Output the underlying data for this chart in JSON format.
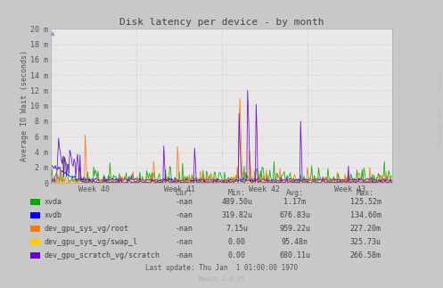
{
  "title": "Disk latency per device - by month",
  "ylabel": "Average IO Wait (seconds)",
  "background_color": "#c8c8c8",
  "plot_bg_color": "#e8e8e8",
  "grid_color_v": "#b0b0c8",
  "grid_color_h": "#ffaaaa",
  "title_color": "#555555",
  "watermark": "RRDTOOL / TOBI OETIKER",
  "munin_version": "Munin 2.0.75",
  "last_update": "Last update: Thu Jan  1 01:00:00 1970",
  "xticklabels": [
    "Week 40",
    "Week 41",
    "Week 42",
    "Week 43"
  ],
  "yticks": [
    0,
    2,
    4,
    6,
    8,
    10,
    12,
    14,
    16,
    18,
    20
  ],
  "ytick_labels": [
    "0",
    "2 m",
    "4 m",
    "6 m",
    "8 m",
    "10 m",
    "12 m",
    "14 m",
    "16 m",
    "18 m",
    "20 m"
  ],
  "ylim": [
    0,
    20
  ],
  "series": [
    {
      "name": "xvda",
      "color": "#00aa00",
      "lw": 0.6
    },
    {
      "name": "xvdb",
      "color": "#0000ff",
      "lw": 0.6
    },
    {
      "name": "dev_gpu_sys_vg/root",
      "color": "#ff7700",
      "lw": 0.6
    },
    {
      "name": "dev_gpu_sys_vg/swap_l",
      "color": "#ffcc00",
      "lw": 0.6
    },
    {
      "name": "dev_gpu_scratch_vg/scratch",
      "color": "#6600cc",
      "lw": 0.6
    }
  ],
  "legend_entries": [
    {
      "name": "xvda",
      "color": "#00aa00",
      "cur": "-nan",
      "min": "489.50u",
      "avg": "1.17m",
      "max": "125.52m"
    },
    {
      "name": "xvdb",
      "color": "#0000ff",
      "cur": "-nan",
      "min": "319.82u",
      "avg": "676.83u",
      "max": "134.60m"
    },
    {
      "name": "dev_gpu_sys_vg/root",
      "color": "#ff7700",
      "cur": "-nan",
      "min": "7.15u",
      "avg": "959.22u",
      "max": "227.20m"
    },
    {
      "name": "dev_gpu_sys_vg/swap_l",
      "color": "#ffcc00",
      "cur": "-nan",
      "min": "0.00",
      "avg": "95.48n",
      "max": "325.73u"
    },
    {
      "name": "dev_gpu_scratch_vg/scratch",
      "color": "#6600cc",
      "cur": "-nan",
      "min": "0.00",
      "avg": "680.11u",
      "max": "266.58m"
    }
  ],
  "col_headers": [
    "Cur:",
    "Min:",
    "Avg:",
    "Max:"
  ]
}
